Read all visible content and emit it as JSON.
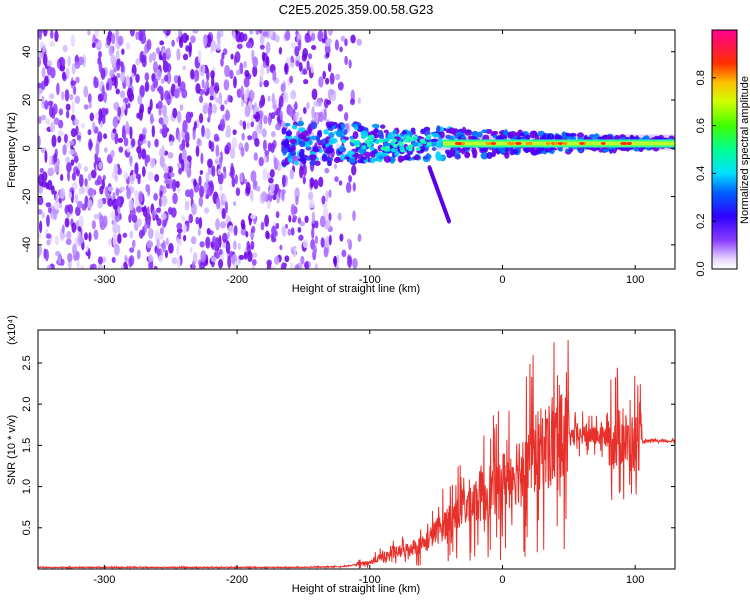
{
  "title": "C2E5.2025.359.00.58.G23",
  "chart_data": [
    {
      "type": "heatmap",
      "xlabel": "Height of straight line (km)",
      "ylabel": "Frequency (Hz)",
      "xlim": [
        -350,
        130
      ],
      "ylim": [
        -50,
        49
      ],
      "xticks": [
        -300,
        -200,
        -100,
        0,
        100
      ],
      "xtick_labels": [
        "-300",
        "-200",
        "-100",
        "0",
        "100"
      ],
      "yticks": [
        -40,
        -20,
        0,
        20,
        40
      ],
      "ytick_labels": [
        "-40",
        "-20",
        "0",
        "20",
        "40"
      ],
      "colorbar": {
        "label": "Normalized spectral amplitude",
        "range": [
          0,
          1
        ],
        "ticks": [
          0.0,
          0.2,
          0.4,
          0.6,
          0.8
        ],
        "tick_labels": [
          "0.0",
          "0.2",
          "0.4",
          "0.6",
          "0.8"
        ]
      },
      "features": {
        "noise_region_x": [
          -350,
          -130
        ],
        "signal_band_x": [
          -165,
          130
        ],
        "signal_band_center_hz": 2
      }
    },
    {
      "type": "line",
      "xlabel": "Height of straight line (km)",
      "ylabel": "SNR (10 * v/v)",
      "y_scale_label": "(x10⁴)",
      "xlim": [
        -350,
        130
      ],
      "ylim": [
        0,
        2.9
      ],
      "xticks": [
        -300,
        -200,
        -100,
        0,
        100
      ],
      "xtick_labels": [
        "-300",
        "-200",
        "-100",
        "0",
        "100"
      ],
      "yticks": [
        0.5,
        1.0,
        1.5,
        2.0,
        2.5
      ],
      "ytick_labels": [
        "0.5",
        "1.0",
        "1.5",
        "2.0",
        "2.5"
      ],
      "series": [
        {
          "name": "SNR",
          "color": "#e8302a",
          "x": [
            -350,
            -300,
            -250,
            -200,
            -150,
            -120,
            -100,
            -90,
            -80,
            -70,
            -60,
            -50,
            -40,
            -30,
            -20,
            -10,
            0,
            10,
            20,
            30,
            40,
            50,
            60,
            70,
            80,
            90,
            95,
            100,
            110,
            120,
            130
          ],
          "y": [
            0.02,
            0.02,
            0.02,
            0.02,
            0.02,
            0.03,
            0.08,
            0.15,
            0.2,
            0.25,
            0.3,
            0.45,
            0.6,
            0.75,
            0.85,
            0.95,
            1.05,
            1.2,
            1.35,
            1.45,
            1.55,
            1.6,
            1.62,
            1.62,
            1.6,
            1.6,
            1.5,
            1.55,
            1.55,
            1.55,
            1.55
          ]
        }
      ]
    }
  ]
}
